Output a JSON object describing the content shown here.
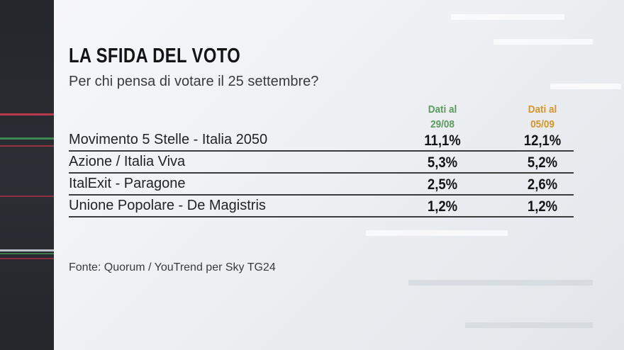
{
  "title": "LA SFIDA DEL VOTO",
  "subtitle": "Per chi pensa di votare il 25 settembre?",
  "columns": [
    {
      "line1": "Dati al",
      "line2": "29/08",
      "color": "#5a9a5e"
    },
    {
      "line1": "Dati al",
      "line2": "05/09",
      "color": "#d4942e"
    }
  ],
  "rows": [
    {
      "party": "Movimento 5 Stelle - Italia 2050",
      "v1": "11,1%",
      "v2": "12,1%"
    },
    {
      "party": "Azione / Italia Viva",
      "v1": "5,3%",
      "v2": "5,2%"
    },
    {
      "party": "ItalExit - Paragone",
      "v1": "2,5%",
      "v2": "2,6%"
    },
    {
      "party": "Unione Popolare - De Magistris",
      "v1": "1,2%",
      "v2": "1,2%"
    }
  ],
  "source": "Fonte: Quorum / YouTrend per Sky TG24"
}
